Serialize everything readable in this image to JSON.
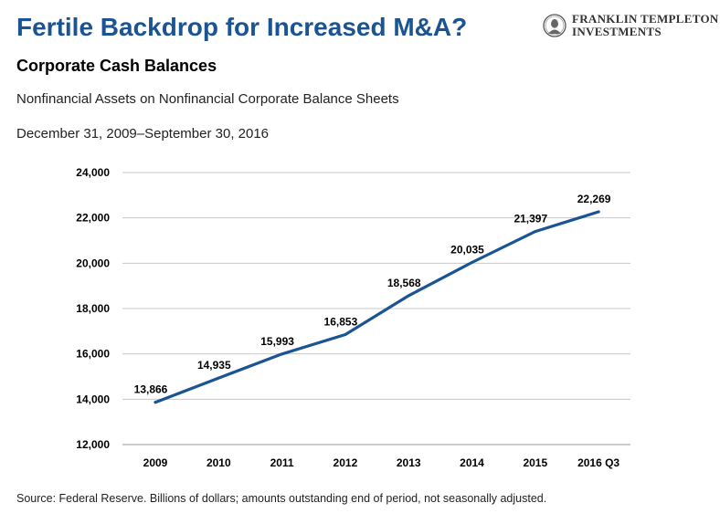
{
  "header": {
    "title": "Fertile Backdrop for Increased M&A?",
    "subtitle": "Corporate Cash Balances",
    "description": "Nonfinancial Assets on Nonfinancial Corporate Balance Sheets",
    "date_range": "December 31, 2009–September 30, 2016"
  },
  "logo": {
    "line1": "FRANKLIN TEMPLETON",
    "line2": "INVESTMENTS",
    "icon": "franklin-portrait-seal"
  },
  "footer": {
    "source": "Source: Federal Reserve. Billions of dollars; amounts outstanding end of period, not seasonally adjusted."
  },
  "colors": {
    "title": "#1a5493",
    "line": "#1a5493",
    "grid": "#c8c8c8"
  },
  "chart_data": {
    "type": "line",
    "categories": [
      "2009",
      "2010",
      "2011",
      "2012",
      "2013",
      "2014",
      "2015",
      "2016 Q3"
    ],
    "series": [
      {
        "values": [
          13866,
          14935,
          15993,
          16853,
          18568,
          20035,
          21397,
          22269
        ]
      }
    ],
    "data_labels": [
      "13,866",
      "14,935",
      "15,993",
      "16,853",
      "18,568",
      "20,035",
      "21,397",
      "22,269"
    ],
    "y_ticks": [
      12000,
      14000,
      16000,
      18000,
      20000,
      22000,
      24000
    ],
    "y_tick_labels": [
      "12,000",
      "14,000",
      "16,000",
      "18,000",
      "20,000",
      "22,000",
      "24,000"
    ],
    "ylim": [
      12000,
      24000
    ],
    "grid": true,
    "legend": "none"
  }
}
